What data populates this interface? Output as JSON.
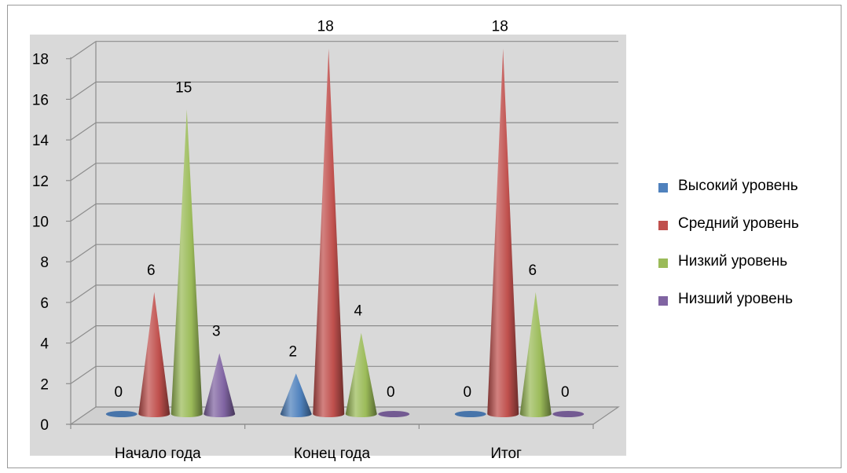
{
  "chart_data": {
    "type": "bar",
    "shape": "3d-cone",
    "categories": [
      "Начало года",
      "Конец года",
      "Итог"
    ],
    "series": [
      {
        "name": "Высокий уровень",
        "values": [
          0,
          2,
          0
        ],
        "color": "#4f81bd"
      },
      {
        "name": "Средний уровень",
        "values": [
          6,
          18,
          18
        ],
        "color": "#c0504d"
      },
      {
        "name": "Низкий уровень",
        "values": [
          15,
          4,
          6
        ],
        "color": "#9bbb59"
      },
      {
        "name": "Низший уровень",
        "values": [
          3,
          0,
          0
        ],
        "color": "#8064a2"
      }
    ],
    "y_ticks": [
      "0",
      "2",
      "4",
      "6",
      "8",
      "10",
      "12",
      "14",
      "16",
      "18"
    ],
    "ylim": [
      0,
      18
    ],
    "grid": true,
    "legend_position": "right",
    "data_labels": true,
    "wall_color": "#d9d9d9"
  }
}
